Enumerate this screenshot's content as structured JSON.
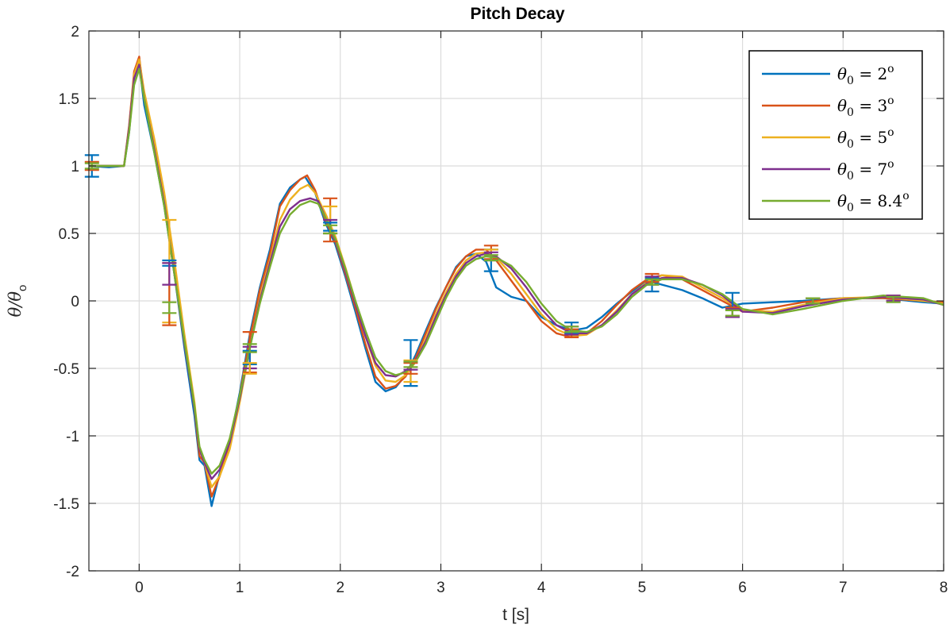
{
  "chart_data": {
    "type": "line",
    "title": "Pitch Decay",
    "xlabel": "t [s]",
    "ylabel_main": "θ/θ",
    "ylabel_sub": "o",
    "xlim": [
      -0.5,
      8
    ],
    "ylim": [
      -2,
      2
    ],
    "xticks": [
      0,
      1,
      2,
      3,
      4,
      5,
      6,
      7,
      8
    ],
    "yticks": [
      -2,
      -1.5,
      -1,
      -0.5,
      0,
      0.5,
      1,
      1.5,
      2
    ],
    "xtick_labels": [
      "0",
      "1",
      "2",
      "3",
      "4",
      "5",
      "6",
      "7",
      "8"
    ],
    "ytick_labels": [
      "-2",
      "-1.5",
      "-1",
      "-0.5",
      "0",
      "0.5",
      "1",
      "1.5",
      "2"
    ],
    "grid": true,
    "legend_position": "top-right",
    "series": [
      {
        "name": "2",
        "legend_main": "θ",
        "legend_sub": "0",
        "legend_eq": " = 2",
        "legend_sup": "o",
        "color": "#0072BD",
        "x": [
          -0.5,
          -0.3,
          -0.15,
          -0.1,
          -0.05,
          0,
          0.05,
          0.15,
          0.25,
          0.35,
          0.45,
          0.55,
          0.6,
          0.65,
          0.72,
          0.8,
          0.9,
          1.0,
          1.1,
          1.2,
          1.3,
          1.4,
          1.5,
          1.6,
          1.65,
          1.75,
          1.85,
          1.95,
          2.05,
          2.15,
          2.25,
          2.35,
          2.45,
          2.55,
          2.65,
          2.75,
          2.85,
          2.95,
          3.05,
          3.15,
          3.25,
          3.35,
          3.45,
          3.55,
          3.7,
          3.85,
          4.0,
          4.15,
          4.3,
          4.45,
          4.6,
          4.75,
          4.9,
          5.05,
          5.2,
          5.4,
          5.6,
          5.8,
          6.0,
          6.3,
          6.6,
          7.0,
          7.4,
          7.8,
          8.0
        ],
        "y": [
          1.0,
          0.99,
          1.0,
          1.25,
          1.65,
          1.76,
          1.45,
          1.1,
          0.7,
          0.2,
          -0.35,
          -0.85,
          -1.18,
          -1.22,
          -1.52,
          -1.28,
          -1.05,
          -0.68,
          -0.25,
          0.1,
          0.38,
          0.72,
          0.84,
          0.9,
          0.92,
          0.8,
          0.58,
          0.42,
          0.18,
          -0.08,
          -0.35,
          -0.6,
          -0.67,
          -0.64,
          -0.55,
          -0.4,
          -0.22,
          -0.05,
          0.1,
          0.25,
          0.33,
          0.35,
          0.29,
          0.1,
          0.03,
          0.0,
          -0.12,
          -0.18,
          -0.22,
          -0.2,
          -0.12,
          -0.02,
          0.07,
          0.15,
          0.12,
          0.08,
          0.02,
          -0.05,
          -0.02,
          -0.01,
          0.0,
          0.02,
          0.02,
          -0.01,
          -0.02
        ]
      },
      {
        "name": "3",
        "legend_main": "θ",
        "legend_sub": "0",
        "legend_eq": " = 3",
        "legend_sup": "o",
        "color": "#D95319",
        "x": [
          -0.5,
          -0.3,
          -0.15,
          -0.1,
          -0.05,
          0,
          0.05,
          0.15,
          0.25,
          0.35,
          0.45,
          0.55,
          0.6,
          0.65,
          0.72,
          0.8,
          0.9,
          1.0,
          1.1,
          1.2,
          1.3,
          1.4,
          1.5,
          1.6,
          1.67,
          1.75,
          1.85,
          1.95,
          2.05,
          2.15,
          2.25,
          2.35,
          2.45,
          2.55,
          2.65,
          2.75,
          2.85,
          2.95,
          3.05,
          3.15,
          3.25,
          3.35,
          3.45,
          3.55,
          3.7,
          3.85,
          4.0,
          4.15,
          4.3,
          4.45,
          4.6,
          4.75,
          4.9,
          5.05,
          5.2,
          5.4,
          5.6,
          5.8,
          6.0,
          6.3,
          6.6,
          7.0,
          7.4,
          7.8,
          8.0
        ],
        "y": [
          1.0,
          1.0,
          1.0,
          1.3,
          1.7,
          1.81,
          1.5,
          1.15,
          0.75,
          0.25,
          -0.3,
          -0.8,
          -1.15,
          -1.2,
          -1.45,
          -1.3,
          -1.05,
          -0.7,
          -0.28,
          0.08,
          0.35,
          0.7,
          0.82,
          0.9,
          0.93,
          0.82,
          0.6,
          0.44,
          0.2,
          -0.05,
          -0.32,
          -0.56,
          -0.65,
          -0.63,
          -0.56,
          -0.42,
          -0.24,
          -0.06,
          0.1,
          0.24,
          0.33,
          0.38,
          0.38,
          0.3,
          0.15,
          0.0,
          -0.15,
          -0.24,
          -0.27,
          -0.24,
          -0.15,
          -0.03,
          0.08,
          0.16,
          0.19,
          0.16,
          0.08,
          0.0,
          -0.08,
          -0.05,
          -0.01,
          0.02,
          0.02,
          0.0,
          -0.01
        ]
      },
      {
        "name": "5",
        "legend_main": "θ",
        "legend_sub": "0",
        "legend_eq": " = 5",
        "legend_sup": "o",
        "color": "#EDB120",
        "x": [
          -0.5,
          -0.3,
          -0.15,
          -0.1,
          -0.05,
          0,
          0.05,
          0.15,
          0.25,
          0.35,
          0.45,
          0.55,
          0.6,
          0.65,
          0.72,
          0.8,
          0.9,
          1.0,
          1.1,
          1.2,
          1.3,
          1.4,
          1.5,
          1.6,
          1.68,
          1.75,
          1.85,
          1.95,
          2.05,
          2.15,
          2.25,
          2.35,
          2.45,
          2.55,
          2.65,
          2.75,
          2.85,
          2.95,
          3.05,
          3.15,
          3.25,
          3.35,
          3.45,
          3.55,
          3.7,
          3.85,
          4.0,
          4.15,
          4.3,
          4.45,
          4.6,
          4.75,
          4.9,
          5.05,
          5.2,
          5.4,
          5.6,
          5.8,
          6.0,
          6.3,
          6.6,
          7.0,
          7.4,
          7.8,
          8.0
        ],
        "y": [
          1.0,
          1.0,
          1.0,
          1.28,
          1.68,
          1.79,
          1.55,
          1.2,
          0.8,
          0.3,
          -0.25,
          -0.75,
          -1.1,
          -1.2,
          -1.38,
          -1.3,
          -1.1,
          -0.75,
          -0.35,
          0.02,
          0.3,
          0.6,
          0.75,
          0.83,
          0.86,
          0.8,
          0.65,
          0.48,
          0.25,
          0.0,
          -0.26,
          -0.48,
          -0.59,
          -0.6,
          -0.55,
          -0.45,
          -0.28,
          -0.1,
          0.06,
          0.2,
          0.3,
          0.35,
          0.36,
          0.32,
          0.2,
          0.05,
          -0.1,
          -0.21,
          -0.26,
          -0.25,
          -0.18,
          -0.07,
          0.05,
          0.14,
          0.19,
          0.18,
          0.1,
          0.02,
          -0.07,
          -0.08,
          -0.03,
          0.02,
          0.03,
          0.0,
          -0.02
        ]
      },
      {
        "name": "7",
        "legend_main": "θ",
        "legend_sub": "0",
        "legend_eq": " = 7",
        "legend_sup": "o",
        "color": "#7E2F8E",
        "x": [
          -0.5,
          -0.3,
          -0.15,
          -0.1,
          -0.05,
          0,
          0.05,
          0.15,
          0.25,
          0.35,
          0.45,
          0.55,
          0.6,
          0.65,
          0.72,
          0.8,
          0.9,
          1.0,
          1.1,
          1.2,
          1.3,
          1.4,
          1.5,
          1.6,
          1.7,
          1.78,
          1.85,
          1.95,
          2.05,
          2.15,
          2.25,
          2.35,
          2.45,
          2.55,
          2.65,
          2.75,
          2.85,
          2.95,
          3.05,
          3.15,
          3.25,
          3.35,
          3.45,
          3.55,
          3.7,
          3.85,
          4.0,
          4.15,
          4.3,
          4.45,
          4.6,
          4.75,
          4.9,
          5.05,
          5.2,
          5.4,
          5.6,
          5.8,
          6.0,
          6.3,
          6.6,
          7.0,
          7.4,
          7.8,
          8.0
        ],
        "y": [
          1.0,
          1.0,
          1.0,
          1.28,
          1.65,
          1.75,
          1.5,
          1.12,
          0.72,
          0.2,
          -0.32,
          -0.8,
          -1.1,
          -1.2,
          -1.32,
          -1.25,
          -1.05,
          -0.72,
          -0.35,
          0.0,
          0.28,
          0.55,
          0.68,
          0.74,
          0.76,
          0.74,
          0.62,
          0.45,
          0.22,
          -0.02,
          -0.26,
          -0.46,
          -0.55,
          -0.56,
          -0.52,
          -0.44,
          -0.3,
          -0.12,
          0.04,
          0.18,
          0.28,
          0.33,
          0.35,
          0.33,
          0.24,
          0.1,
          -0.06,
          -0.18,
          -0.24,
          -0.24,
          -0.18,
          -0.08,
          0.05,
          0.13,
          0.17,
          0.17,
          0.12,
          0.04,
          -0.08,
          -0.09,
          -0.04,
          0.01,
          0.03,
          0.01,
          -0.03
        ]
      },
      {
        "name": "8.4",
        "legend_main": "θ",
        "legend_sub": "0",
        "legend_eq": " = 8.4",
        "legend_sup": "o",
        "color": "#77AC30",
        "x": [
          -0.5,
          -0.3,
          -0.15,
          -0.1,
          -0.05,
          0,
          0.05,
          0.15,
          0.25,
          0.35,
          0.45,
          0.55,
          0.6,
          0.65,
          0.72,
          0.8,
          0.9,
          1.0,
          1.1,
          1.2,
          1.3,
          1.4,
          1.5,
          1.6,
          1.7,
          1.78,
          1.85,
          1.95,
          2.05,
          2.15,
          2.25,
          2.35,
          2.45,
          2.55,
          2.65,
          2.75,
          2.85,
          2.95,
          3.05,
          3.15,
          3.25,
          3.35,
          3.45,
          3.55,
          3.7,
          3.85,
          4.0,
          4.15,
          4.3,
          4.45,
          4.6,
          4.75,
          4.9,
          5.05,
          5.2,
          5.4,
          5.6,
          5.8,
          6.0,
          6.3,
          6.6,
          7.0,
          7.4,
          7.8,
          8.0
        ],
        "y": [
          1.0,
          1.0,
          1.0,
          1.25,
          1.6,
          1.72,
          1.5,
          1.1,
          0.7,
          0.2,
          -0.3,
          -0.78,
          -1.08,
          -1.18,
          -1.28,
          -1.22,
          -1.02,
          -0.7,
          -0.35,
          -0.02,
          0.25,
          0.5,
          0.64,
          0.71,
          0.74,
          0.72,
          0.62,
          0.46,
          0.24,
          0.0,
          -0.22,
          -0.42,
          -0.52,
          -0.55,
          -0.53,
          -0.45,
          -0.32,
          -0.15,
          0.02,
          0.16,
          0.26,
          0.31,
          0.33,
          0.32,
          0.26,
          0.14,
          -0.02,
          -0.15,
          -0.22,
          -0.23,
          -0.19,
          -0.1,
          0.03,
          0.12,
          0.16,
          0.16,
          0.12,
          0.05,
          -0.06,
          -0.1,
          -0.06,
          0.0,
          0.04,
          0.02,
          -0.03
        ]
      }
    ],
    "error_bars": [
      {
        "series": 0,
        "x": -0.47,
        "y": 1.0,
        "err": 0.08
      },
      {
        "series": 1,
        "x": -0.47,
        "y": 1.0,
        "err": 0.03
      },
      {
        "series": 4,
        "x": -0.47,
        "y": 1.0,
        "err": 0.02
      },
      {
        "series": 2,
        "x": 0.3,
        "y": 0.22,
        "err": 0.38
      },
      {
        "series": 1,
        "x": 0.3,
        "y": 0.05,
        "err": 0.23
      },
      {
        "series": 0,
        "x": 0.3,
        "y": 0.28,
        "err": 0.02
      },
      {
        "series": 3,
        "x": 0.3,
        "y": 0.2,
        "err": 0.08
      },
      {
        "series": 4,
        "x": 0.3,
        "y": -0.05,
        "err": 0.04
      },
      {
        "series": 1,
        "x": 1.1,
        "y": -0.38,
        "err": 0.15
      },
      {
        "series": 3,
        "x": 1.1,
        "y": -0.42,
        "err": 0.08
      },
      {
        "series": 0,
        "x": 1.1,
        "y": -0.42,
        "err": 0.05
      },
      {
        "series": 2,
        "x": 1.1,
        "y": -0.5,
        "err": 0.04
      },
      {
        "series": 4,
        "x": 1.1,
        "y": -0.35,
        "err": 0.03
      },
      {
        "series": 1,
        "x": 1.9,
        "y": 0.6,
        "err": 0.16
      },
      {
        "series": 2,
        "x": 1.9,
        "y": 0.6,
        "err": 0.1
      },
      {
        "series": 3,
        "x": 1.9,
        "y": 0.55,
        "err": 0.05
      },
      {
        "series": 0,
        "x": 1.9,
        "y": 0.55,
        "err": 0.03
      },
      {
        "series": 4,
        "x": 1.9,
        "y": 0.53,
        "err": 0.03
      },
      {
        "series": 0,
        "x": 2.7,
        "y": -0.46,
        "err": 0.17
      },
      {
        "series": 2,
        "x": 2.7,
        "y": -0.52,
        "err": 0.08
      },
      {
        "series": 1,
        "x": 2.7,
        "y": -0.5,
        "err": 0.04
      },
      {
        "series": 3,
        "x": 2.7,
        "y": -0.48,
        "err": 0.03
      },
      {
        "series": 4,
        "x": 2.7,
        "y": -0.47,
        "err": 0.02
      },
      {
        "series": 0,
        "x": 3.5,
        "y": 0.3,
        "err": 0.08
      },
      {
        "series": 1,
        "x": 3.5,
        "y": 0.36,
        "err": 0.05
      },
      {
        "series": 2,
        "x": 3.5,
        "y": 0.34,
        "err": 0.04
      },
      {
        "series": 3,
        "x": 3.5,
        "y": 0.33,
        "err": 0.03
      },
      {
        "series": 4,
        "x": 3.5,
        "y": 0.32,
        "err": 0.02
      },
      {
        "series": 0,
        "x": 4.3,
        "y": -0.2,
        "err": 0.04
      },
      {
        "series": 1,
        "x": 4.3,
        "y": -0.24,
        "err": 0.03
      },
      {
        "series": 3,
        "x": 4.3,
        "y": -0.22,
        "err": 0.03
      },
      {
        "series": 4,
        "x": 4.3,
        "y": -0.21,
        "err": 0.02
      },
      {
        "series": 0,
        "x": 5.1,
        "y": 0.12,
        "err": 0.05
      },
      {
        "series": 1,
        "x": 5.1,
        "y": 0.17,
        "err": 0.03
      },
      {
        "series": 3,
        "x": 5.1,
        "y": 0.15,
        "err": 0.03
      },
      {
        "series": 4,
        "x": 5.1,
        "y": 0.14,
        "err": 0.02
      },
      {
        "series": 0,
        "x": 5.9,
        "y": -0.03,
        "err": 0.09
      },
      {
        "series": 1,
        "x": 5.9,
        "y": -0.08,
        "err": 0.03
      },
      {
        "series": 3,
        "x": 5.9,
        "y": -0.09,
        "err": 0.03
      },
      {
        "series": 4,
        "x": 5.9,
        "y": -0.09,
        "err": 0.02
      },
      {
        "series": 1,
        "x": 6.7,
        "y": 0.0,
        "err": 0.02
      },
      {
        "series": 3,
        "x": 6.7,
        "y": 0.0,
        "err": 0.02
      },
      {
        "series": 4,
        "x": 6.7,
        "y": 0.0,
        "err": 0.02
      },
      {
        "series": 1,
        "x": 7.5,
        "y": 0.02,
        "err": 0.02
      },
      {
        "series": 3,
        "x": 7.5,
        "y": 0.02,
        "err": 0.02
      },
      {
        "series": 4,
        "x": 7.5,
        "y": 0.01,
        "err": 0.02
      }
    ]
  }
}
